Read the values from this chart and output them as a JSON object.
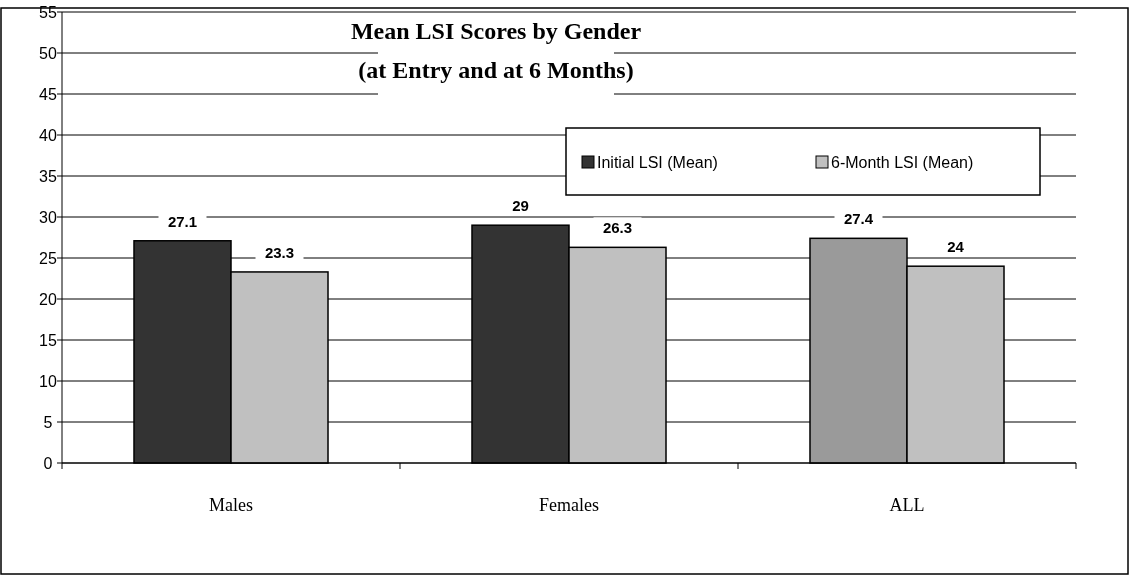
{
  "chart_data": {
    "type": "bar",
    "title": "Mean LSI Scores by Gender",
    "subtitle": "(at Entry and at 6 Months)",
    "categories": [
      "Males",
      "Females",
      "ALL"
    ],
    "series": [
      {
        "name": "Initial LSI (Mean)",
        "color": "#333333",
        "colors": [
          "#333333",
          "#333333",
          "#9a9a9a"
        ],
        "values": [
          27.1,
          29,
          27.4
        ]
      },
      {
        "name": "6-Month LSI (Mean)",
        "color": "#c0c0c0",
        "values": [
          23.3,
          26.3,
          24
        ]
      }
    ],
    "ylim": [
      0,
      55
    ],
    "yticks": [
      0,
      5,
      10,
      15,
      20,
      25,
      30,
      35,
      40,
      45,
      50,
      55
    ],
    "grid": "y",
    "legend": "top right",
    "data_labels": true
  }
}
